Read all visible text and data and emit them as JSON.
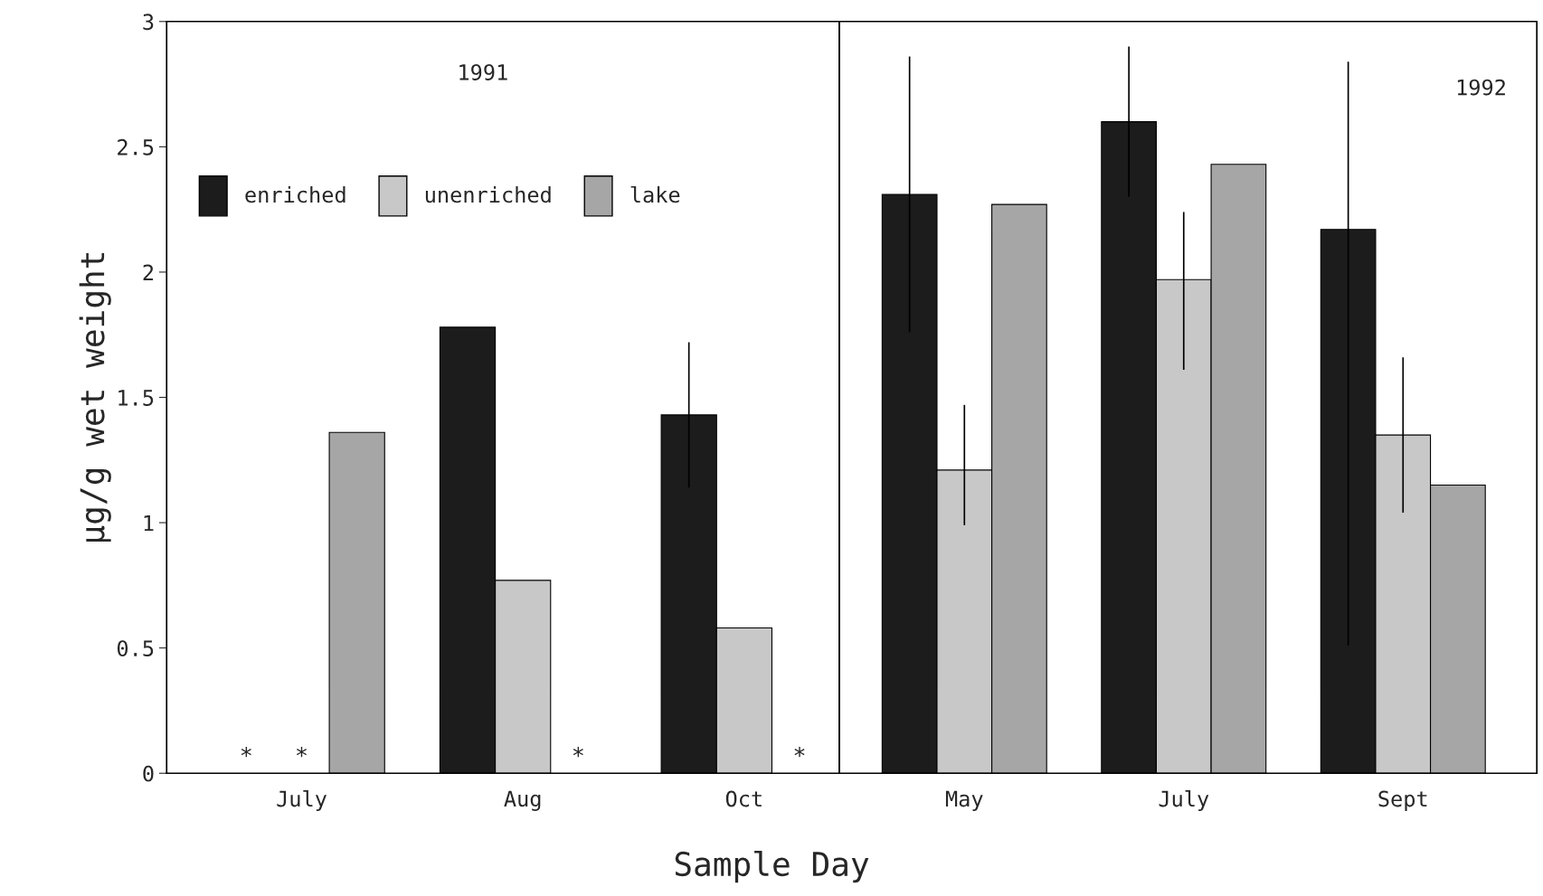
{
  "chart_data": [
    {
      "type": "bar",
      "xlabel": "Sample Day",
      "ylabel": "µg/g wet weight",
      "categories": [
        "July",
        "Aug",
        "Oct"
      ],
      "ylim": [
        0,
        3
      ],
      "yticks": [
        0,
        0.5,
        1,
        1.5,
        2,
        2.5,
        3
      ],
      "legend": "top left",
      "annotations": [
        "1991"
      ],
      "series": [
        {
          "name": "enriched",
          "color": "#1c1c1c",
          "values": [
            null,
            1.78,
            1.43
          ],
          "value_labels": [
            "*",
            null,
            null
          ],
          "errors": [
            null,
            null,
            0.29
          ]
        },
        {
          "name": "unenriched",
          "color": "#c8c8c8",
          "values": [
            null,
            0.77,
            0.58
          ],
          "value_labels": [
            "*",
            null,
            null
          ]
        },
        {
          "name": "lake",
          "color": "#a6a6a6",
          "values": [
            1.36,
            null,
            null
          ],
          "value_labels": [
            null,
            "*",
            "*"
          ]
        }
      ]
    },
    {
      "type": "bar",
      "categories": [
        "May",
        "July",
        "Sept"
      ],
      "ylim": [
        0,
        3
      ],
      "yticks": [
        0,
        0.5,
        1,
        1.5,
        2,
        2.5,
        3
      ],
      "tick_labels": "x",
      "annotations": [
        "1992"
      ],
      "series": [
        {
          "color": "#1c1c1c",
          "values": [
            2.31,
            2.6,
            2.17
          ],
          "errors": [
            0.55,
            0.3,
            [
              0.51,
              2.84
            ]
          ]
        },
        {
          "color": "#c8c8c8",
          "values": [
            1.21,
            1.97,
            1.35
          ],
          "errors": [
            [
              0.99,
              1.47
            ],
            [
              1.61,
              2.24
            ],
            [
              1.04,
              1.66
            ]
          ]
        },
        {
          "color": "#a6a6a6",
          "values": [
            2.27,
            2.43,
            1.15
          ]
        }
      ]
    }
  ]
}
